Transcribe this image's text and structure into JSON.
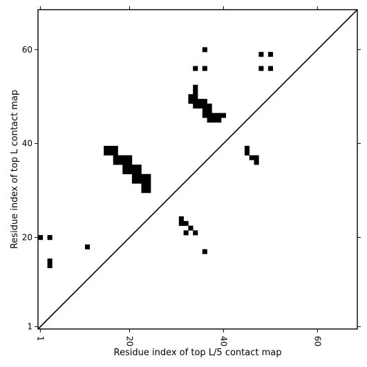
{
  "chart_data": {
    "type": "heatmap",
    "xlabel": "Residue index of top L/5 contact map",
    "ylabel": "Residue index of top L contact map",
    "xlim": [
      0.5,
      68.5
    ],
    "ylim": [
      0.5,
      68.5
    ],
    "x_ticks": [
      {
        "value": 1,
        "label": "1"
      },
      {
        "value": 20,
        "label": "20"
      },
      {
        "value": 40,
        "label": "40"
      },
      {
        "value": 60,
        "label": "60"
      }
    ],
    "y_ticks": [
      {
        "value": 1,
        "label": "1"
      },
      {
        "value": 20,
        "label": "20"
      },
      {
        "value": 40,
        "label": "40"
      },
      {
        "value": 60,
        "label": "60"
      }
    ],
    "x_tick_label_rotation": -90,
    "grid": false,
    "diagonal_line": true,
    "contact_color": "#000000",
    "background_color": "#ffffff",
    "upper_triangle_contacts": [
      [
        15,
        39
      ],
      [
        16,
        39
      ],
      [
        17,
        39
      ],
      [
        15,
        38
      ],
      [
        16,
        38
      ],
      [
        17,
        38
      ],
      [
        17,
        37
      ],
      [
        18,
        37
      ],
      [
        19,
        37
      ],
      [
        20,
        37
      ],
      [
        17,
        36
      ],
      [
        18,
        36
      ],
      [
        19,
        36
      ],
      [
        20,
        36
      ],
      [
        19,
        35
      ],
      [
        20,
        35
      ],
      [
        21,
        35
      ],
      [
        22,
        35
      ],
      [
        19,
        34
      ],
      [
        20,
        34
      ],
      [
        21,
        34
      ],
      [
        22,
        34
      ],
      [
        21,
        33
      ],
      [
        22,
        33
      ],
      [
        23,
        33
      ],
      [
        24,
        33
      ],
      [
        21,
        32
      ],
      [
        22,
        32
      ],
      [
        23,
        32
      ],
      [
        24,
        32
      ],
      [
        23,
        31
      ],
      [
        24,
        31
      ],
      [
        23,
        30
      ],
      [
        24,
        30
      ],
      [
        34,
        52
      ],
      [
        34,
        51
      ],
      [
        33,
        50
      ],
      [
        34,
        50
      ],
      [
        33,
        49
      ],
      [
        34,
        49
      ],
      [
        35,
        49
      ],
      [
        36,
        49
      ],
      [
        34,
        48
      ],
      [
        35,
        48
      ],
      [
        36,
        48
      ],
      [
        37,
        48
      ],
      [
        36,
        47
      ],
      [
        37,
        47
      ],
      [
        36,
        46
      ],
      [
        37,
        46
      ],
      [
        38,
        46
      ],
      [
        39,
        46
      ],
      [
        40,
        46
      ],
      [
        37,
        45
      ],
      [
        38,
        45
      ],
      [
        39,
        45
      ],
      [
        36,
        60
      ],
      [
        34,
        56
      ],
      [
        36,
        56
      ],
      [
        48,
        59
      ],
      [
        50,
        59
      ],
      [
        48,
        56
      ],
      [
        50,
        56
      ]
    ],
    "lower_triangle_contacts": [
      [
        45,
        39
      ],
      [
        45,
        38
      ],
      [
        46,
        37
      ],
      [
        47,
        37
      ],
      [
        47,
        36
      ],
      [
        31,
        24
      ],
      [
        31,
        23
      ],
      [
        32,
        23
      ],
      [
        33,
        22
      ],
      [
        32,
        21
      ],
      [
        34,
        21
      ],
      [
        36,
        17
      ],
      [
        1,
        20
      ],
      [
        3,
        20
      ],
      [
        11,
        18
      ],
      [
        3,
        15
      ],
      [
        3,
        14
      ]
    ]
  }
}
